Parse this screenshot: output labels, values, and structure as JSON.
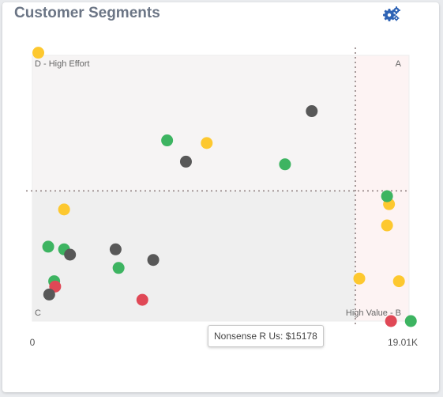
{
  "card": {
    "title": "Customer Segments",
    "settings_icon": "gears-icon"
  },
  "tooltip": {
    "text": "Nonsense R Us: $15178"
  },
  "chart_data": {
    "type": "scatter",
    "title": "Customer Segments",
    "x_tick_labels": [
      "0",
      "19.01K"
    ],
    "xlim": [
      0,
      19010
    ],
    "ylim": [
      0,
      100
    ],
    "x_threshold": 16300,
    "y_threshold": 49,
    "quadrant_labels": {
      "top_left": "D - High Effort",
      "top_right": "A",
      "bottom_left": "C",
      "bottom_right": "High Value - B"
    },
    "colors": {
      "green": "#3db461",
      "yellow": "#fdc82f",
      "gray": "#585858",
      "red": "#e04856",
      "quadrant_upper_right": "#fdf3f3",
      "quadrant_other": "#f6f4f4",
      "quadrant_lower_left": "#efefef"
    },
    "points": [
      {
        "x": 300,
        "y": 101,
        "color": "yellow"
      },
      {
        "x": 14100,
        "y": 79,
        "color": "gray"
      },
      {
        "x": 6800,
        "y": 68,
        "color": "green"
      },
      {
        "x": 8800,
        "y": 67,
        "color": "yellow"
      },
      {
        "x": 7750,
        "y": 60,
        "color": "gray"
      },
      {
        "x": 12750,
        "y": 59,
        "color": "green"
      },
      {
        "x": 18000,
        "y": 44,
        "color": "yellow"
      },
      {
        "x": 17900,
        "y": 47,
        "color": "green"
      },
      {
        "x": 1600,
        "y": 42,
        "color": "yellow"
      },
      {
        "x": 17900,
        "y": 36,
        "color": "yellow"
      },
      {
        "x": 800,
        "y": 28,
        "color": "green"
      },
      {
        "x": 1600,
        "y": 27,
        "color": "green"
      },
      {
        "x": 1900,
        "y": 25,
        "color": "gray"
      },
      {
        "x": 4200,
        "y": 27,
        "color": "gray"
      },
      {
        "x": 6100,
        "y": 23,
        "color": "gray"
      },
      {
        "x": 4350,
        "y": 20,
        "color": "green"
      },
      {
        "x": 1100,
        "y": 15,
        "color": "green"
      },
      {
        "x": 1150,
        "y": 13,
        "color": "red"
      },
      {
        "x": 850,
        "y": 10,
        "color": "gray"
      },
      {
        "x": 5550,
        "y": 8,
        "color": "red"
      },
      {
        "x": 16500,
        "y": 16,
        "color": "yellow"
      },
      {
        "x": 18500,
        "y": 15,
        "color": "yellow"
      },
      {
        "x": 18100,
        "y": 0,
        "color": "red"
      },
      {
        "x": 19100,
        "y": 0,
        "color": "green"
      }
    ]
  }
}
